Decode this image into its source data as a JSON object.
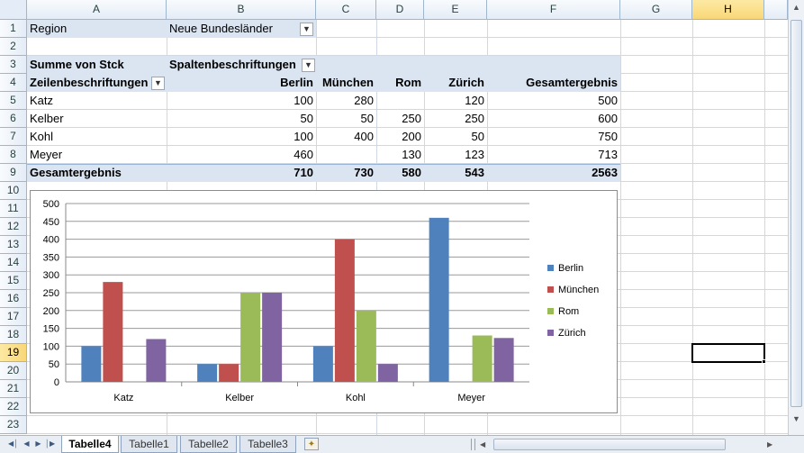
{
  "columns": [
    "A",
    "B",
    "C",
    "D",
    "E",
    "F",
    "G",
    "H"
  ],
  "rows": [
    "1",
    "2",
    "3",
    "4",
    "5",
    "6",
    "7",
    "8",
    "9",
    "10",
    "11",
    "12",
    "13",
    "14",
    "15",
    "16",
    "17",
    "18",
    "19",
    "20",
    "21",
    "22",
    "23"
  ],
  "selected_col": "H",
  "selected_row": "19",
  "filter": {
    "label": "Region",
    "value": "Neue Bundesländer"
  },
  "pivot": {
    "value_label": "Summe von Stck",
    "col_labels_label": "Spaltenbeschriftungen",
    "row_labels_label": "Zeilenbeschriftungen",
    "headers": [
      "Berlin",
      "München",
      "Rom",
      "Zürich",
      "Gesamtergebnis"
    ],
    "rows": [
      {
        "name": "Katz",
        "cells": [
          "100",
          "280",
          "",
          "120",
          "500"
        ]
      },
      {
        "name": "Kelber",
        "cells": [
          "50",
          "50",
          "250",
          "250",
          "600"
        ]
      },
      {
        "name": "Kohl",
        "cells": [
          "100",
          "400",
          "200",
          "50",
          "750"
        ]
      },
      {
        "name": "Meyer",
        "cells": [
          "460",
          "",
          "130",
          "123",
          "713"
        ]
      }
    ],
    "total": {
      "name": "Gesamtergebnis",
      "cells": [
        "710",
        "730",
        "580",
        "543",
        "2563"
      ]
    }
  },
  "chart_data": {
    "type": "bar",
    "categories": [
      "Katz",
      "Kelber",
      "Kohl",
      "Meyer"
    ],
    "series": [
      {
        "name": "Berlin",
        "color": "#4f81bd",
        "values": [
          100,
          50,
          100,
          460
        ]
      },
      {
        "name": "München",
        "color": "#c0504d",
        "values": [
          280,
          50,
          400,
          0
        ]
      },
      {
        "name": "Rom",
        "color": "#9bbb59",
        "values": [
          0,
          250,
          200,
          130
        ]
      },
      {
        "name": "Zürich",
        "color": "#8064a2",
        "values": [
          120,
          250,
          50,
          123
        ]
      }
    ],
    "ylim": [
      0,
      500
    ],
    "yticks": [
      0,
      50,
      100,
      150,
      200,
      250,
      300,
      350,
      400,
      450,
      500
    ],
    "grid": true,
    "legend": "right"
  },
  "sheets": [
    "Tabelle4",
    "Tabelle1",
    "Tabelle2",
    "Tabelle3"
  ],
  "active_sheet": "Tabelle4",
  "icons": {
    "nav": [
      "first-sheet-icon",
      "prev-sheet-icon",
      "next-sheet-icon",
      "last-sheet-icon"
    ],
    "filter": "filter-icon",
    "dropdown": "dropdown-icon",
    "new_sheet": "insert-sheet-icon"
  }
}
